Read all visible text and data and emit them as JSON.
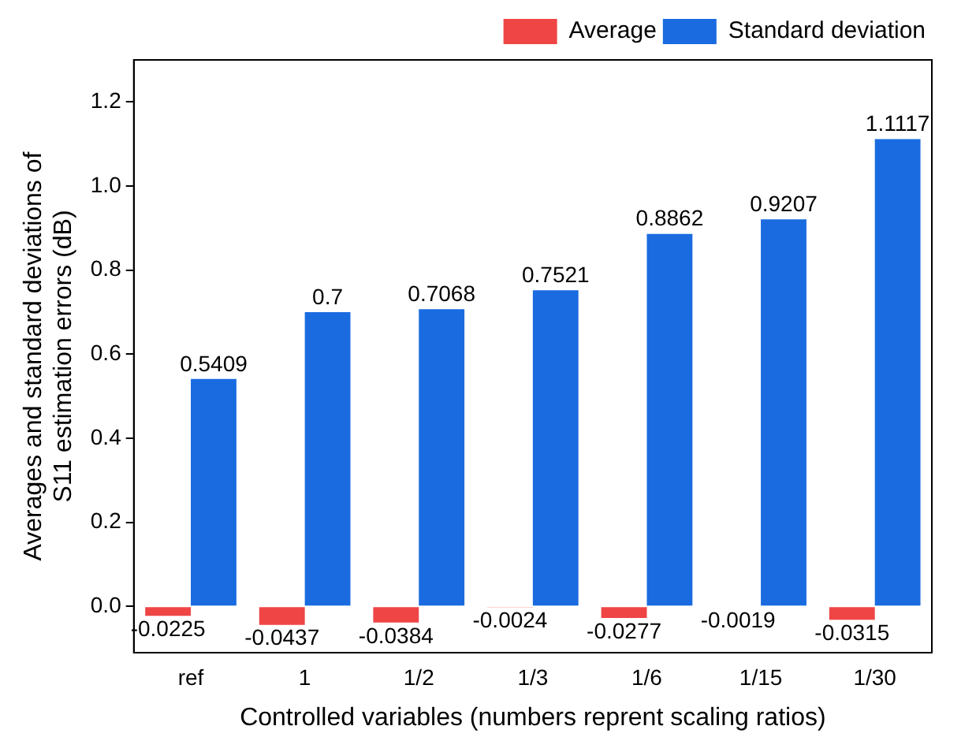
{
  "chart_data": {
    "type": "bar",
    "xlabel": "Controlled variables (numbers reprent scaling ratios)",
    "ylabel": "Averages and standard deviations of S11 estimation errors (dB)",
    "categories": [
      "ref",
      "1",
      "1/2",
      "1/3",
      "1/6",
      "1/15",
      "1/30"
    ],
    "series": [
      {
        "name": "Average",
        "color": "#f04545",
        "values": [
          -0.0225,
          -0.0437,
          -0.0384,
          -0.0024,
          -0.0277,
          -0.0019,
          -0.0315
        ]
      },
      {
        "name": "Standard deviation",
        "color": "#1a6be0",
        "values": [
          0.5409,
          0.7,
          0.7068,
          0.7521,
          0.8862,
          0.9207,
          1.1117
        ]
      }
    ],
    "ylim": [
      -0.11,
      1.3
    ],
    "yticks": [
      {
        "value": 0,
        "label": "0.0"
      },
      {
        "value": 0.2,
        "label": "0.2"
      },
      {
        "value": 0.4,
        "label": "0.4"
      },
      {
        "value": 0.6,
        "label": "0.6"
      },
      {
        "value": 0.8,
        "label": "0.8"
      },
      {
        "value": 1,
        "label": "1.0"
      },
      {
        "value": 1.2,
        "label": "1.2"
      }
    ],
    "grid": false,
    "legend": "top right",
    "data_labels": true
  }
}
